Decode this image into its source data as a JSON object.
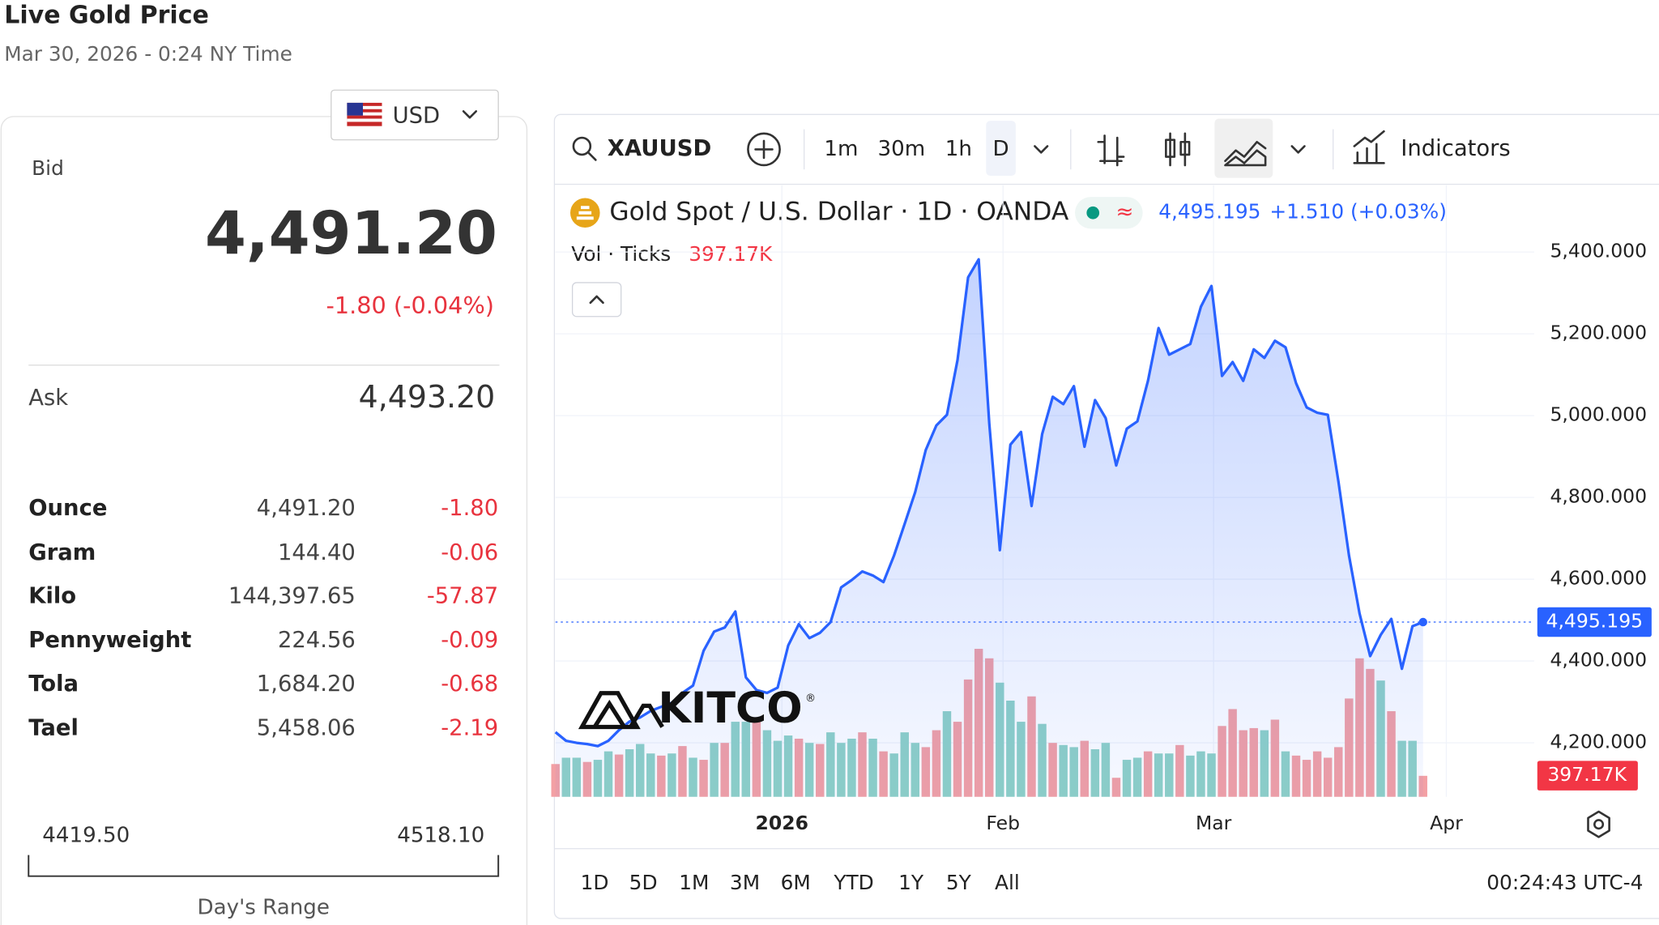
{
  "header": {
    "title": "Live Gold Price",
    "timestamp": "Mar 30, 2026 - 0:24 NY Time"
  },
  "currency": "USD",
  "quote": {
    "bid_label": "Bid",
    "bid": "4,491.20",
    "change": "-1.80 (-0.04%)",
    "ask_label": "Ask",
    "ask": "4,493.20"
  },
  "units": {
    "rows": [
      [
        "Ounce",
        "4,491.20",
        "-1.80"
      ],
      [
        "Gram",
        "144.40",
        "-0.06"
      ],
      [
        "Kilo",
        "144,397.65",
        "-57.87"
      ],
      [
        "Pennyweight",
        "224.56",
        "-0.09"
      ],
      [
        "Tola",
        "1,684.20",
        "-0.68"
      ],
      [
        "Tael",
        "5,458.06",
        "-2.19"
      ]
    ]
  },
  "day_range": {
    "low": "4419.50",
    "high": "4518.10",
    "label": "Day's Range"
  },
  "toolbar": {
    "symbol": "XAUUSD",
    "intervals": [
      "1m",
      "30m",
      "1h",
      "D"
    ],
    "indicators": "Indicators"
  },
  "legend": {
    "name": "Gold Spot / U.S. Dollar · 1D · OANDA",
    "approx": "≈",
    "change": "+1.510 (+0.03%)"
  },
  "watermark": {
    "text": "KITCO",
    "mark": "®"
  },
  "ranges": [
    "1D",
    "5D",
    "1M",
    "3M",
    "6M",
    "YTD",
    "1Y",
    "5Y",
    "All"
  ],
  "clock": "00:24:43 UTC-4",
  "chart_data": {
    "type": "area",
    "x": [
      0,
      1,
      2,
      3,
      4,
      5,
      6,
      7,
      8,
      9,
      10,
      11,
      12,
      13,
      14,
      15,
      16,
      17,
      18,
      19,
      20,
      21,
      22,
      23,
      24,
      25,
      26,
      27,
      28,
      29,
      30,
      31,
      32,
      33,
      34,
      35,
      36,
      37,
      38,
      39,
      40,
      41,
      42,
      43,
      44,
      45,
      46,
      47,
      48,
      49,
      50,
      51,
      52,
      53,
      54,
      55,
      56,
      57,
      58,
      59,
      60,
      61,
      62,
      63,
      64,
      65,
      66,
      67,
      68,
      69,
      70,
      71,
      72,
      73,
      74,
      75,
      76,
      77,
      78,
      79,
      80,
      81,
      82
    ],
    "series": [
      {
        "name": "XAUUSD",
        "color": "#2962ff",
        "values": [
          4226,
          4205,
          4200,
          4197,
          4192,
          4205,
          4231,
          4252,
          4262,
          4278,
          4288,
          4298,
          4322,
          4340,
          4425,
          4472,
          4482,
          4521,
          4360,
          4329,
          4322,
          4335,
          4438,
          4490,
          4456,
          4469,
          4495,
          4580,
          4598,
          4619,
          4609,
          4593,
          4658,
          4735,
          4813,
          4916,
          4976,
          5002,
          5136,
          5338,
          5382,
          4981,
          4671,
          4929,
          4960,
          4779,
          4955,
          5046,
          5028,
          5072,
          4924,
          5038,
          4994,
          4878,
          4968,
          4986,
          5085,
          5214,
          5149,
          5162,
          5175,
          5266,
          5317,
          5097,
          5131,
          5085,
          5162,
          5141,
          5183,
          5167,
          5079,
          5020,
          5007,
          5002,
          4839,
          4658,
          4516,
          4412,
          4464,
          4503,
          4381,
          4485,
          4495.195
        ],
        "last_label": "4,495.195"
      },
      {
        "name": "Vol · Ticks",
        "values": [
          620000,
          740000,
          740000,
          660000,
          700000,
          860000,
          800000,
          900000,
          1000000,
          820000,
          780000,
          820000,
          960000,
          740000,
          700000,
          1020000,
          1020000,
          1420000,
          1420000,
          1460000,
          1260000,
          1060000,
          1160000,
          1100000,
          1020000,
          1000000,
          1220000,
          1020000,
          1100000,
          1220000,
          1100000,
          860000,
          820000,
          1220000,
          1020000,
          940000,
          1260000,
          1620000,
          1420000,
          2220000,
          2800000,
          2620000,
          2160000,
          1820000,
          1420000,
          1900000,
          1380000,
          1020000,
          980000,
          940000,
          1060000,
          900000,
          1020000,
          360000,
          700000,
          740000,
          860000,
          820000,
          820000,
          980000,
          780000,
          860000,
          820000,
          1340000,
          1660000,
          1260000,
          1300000,
          1260000,
          1460000,
          860000,
          780000,
          700000,
          860000,
          740000,
          940000,
          1860000,
          2620000,
          2420000,
          2200000,
          1620000,
          1060000,
          1060000,
          397170
        ],
        "last_label": "397.17K",
        "colors": [
          "#f3a0a4",
          "#8fd1c6",
          "#8fd1c6",
          "#f3a0a4",
          "#8fd1c6",
          "#8fd1c6",
          "#f3a0a4",
          "#8fd1c6",
          "#8fd1c6",
          "#8fd1c6",
          "#f3a0a4",
          "#8fd1c6",
          "#f3a0a4",
          "#8fd1c6",
          "#f3a0a4",
          "#8fd1c6",
          "#f3a0a4",
          "#8fd1c6",
          "#8fd1c6",
          "#f3a0a4",
          "#8fd1c6",
          "#8fd1c6",
          "#8fd1c6",
          "#f3a0a4",
          "#8fd1c6",
          "#f3a0a4",
          "#8fd1c6",
          "#8fd1c6",
          "#8fd1c6",
          "#f3a0a4",
          "#8fd1c6",
          "#f3a0a4",
          "#8fd1c6",
          "#8fd1c6",
          "#8fd1c6",
          "#f3a0a4",
          "#f3a0a4",
          "#8fd1c6",
          "#f3a0a4",
          "#f3a0a4",
          "#f3a0a4",
          "#f3a0a4",
          "#8fd1c6",
          "#8fd1c6",
          "#8fd1c6",
          "#f3a0a4",
          "#8fd1c6",
          "#f3a0a4",
          "#8fd1c6",
          "#8fd1c6",
          "#f3a0a4",
          "#8fd1c6",
          "#8fd1c6",
          "#f3a0a4",
          "#8fd1c6",
          "#8fd1c6",
          "#f3a0a4",
          "#8fd1c6",
          "#8fd1c6",
          "#f3a0a4",
          "#8fd1c6",
          "#8fd1c6",
          "#8fd1c6",
          "#f3a0a4",
          "#f3a0a4",
          "#f3a0a4",
          "#f3a0a4",
          "#8fd1c6",
          "#f3a0a4",
          "#8fd1c6",
          "#f3a0a4",
          "#f3a0a4",
          "#f3a0a4",
          "#f3a0a4",
          "#f3a0a4",
          "#f3a0a4",
          "#f3a0a4",
          "#f3a0a4",
          "#8fd1c6",
          "#f3a0a4",
          "#8fd1c6",
          "#8fd1c6",
          "#f3a0a4"
        ]
      }
    ],
    "xlim": [
      0,
      92.5
    ],
    "xticks": [
      {
        "value": 21.4,
        "label": "2026"
      },
      {
        "value": 42.3,
        "label": "Feb"
      },
      {
        "value": 62.2,
        "label": "Mar"
      },
      {
        "value": 84.2,
        "label": "Apr"
      }
    ],
    "ylim": [
      4068,
      5563
    ],
    "yticks": [
      {
        "value": 4200,
        "label": "4,200.000"
      },
      {
        "value": 4400,
        "label": "4,400.000"
      },
      {
        "value": 4600,
        "label": "4,600.000"
      },
      {
        "value": 4800,
        "label": "4,800.000"
      },
      {
        "value": 5000,
        "label": "5,000.000"
      },
      {
        "value": 5200,
        "label": "5,200.000"
      },
      {
        "value": 5400,
        "label": "5,400.000"
      }
    ],
    "grid": true
  }
}
